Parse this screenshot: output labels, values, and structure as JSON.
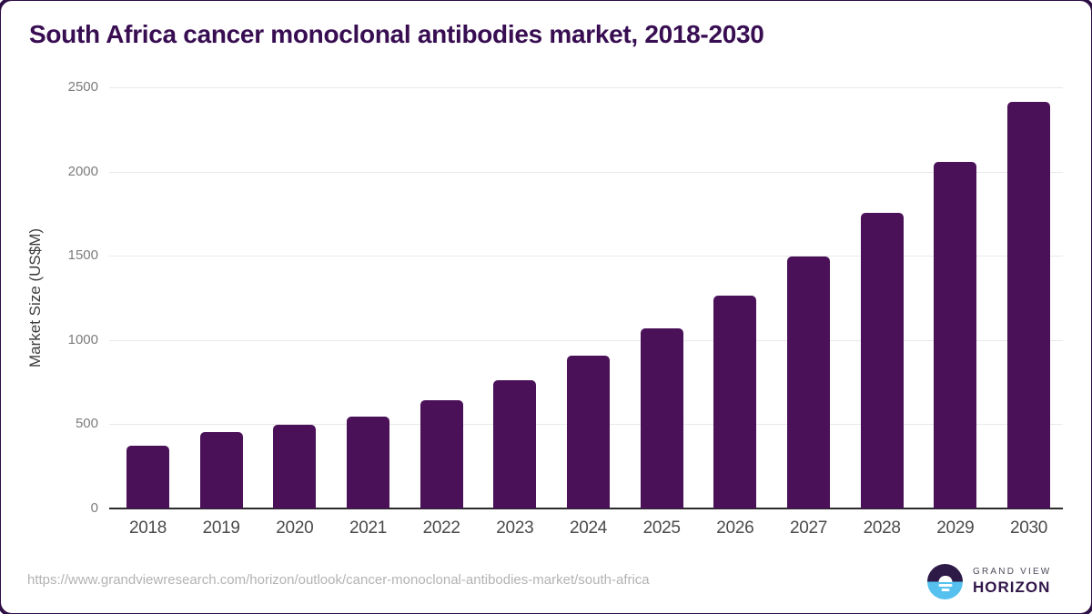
{
  "page": {
    "title": "South Africa cancer monoclonal antibodies market, 2018-2030",
    "source_url": "https://www.grandviewresearch.com/horizon/outlook/cancer-monoclonal-antibodies-market/south-africa"
  },
  "chart_data": {
    "type": "bar",
    "title": "South Africa cancer monoclonal antibodies market, 2018-2030",
    "categories": [
      "2018",
      "2019",
      "2020",
      "2021",
      "2022",
      "2023",
      "2024",
      "2025",
      "2026",
      "2027",
      "2028",
      "2029",
      "2030"
    ],
    "values": [
      375,
      452,
      495,
      543,
      645,
      763,
      905,
      1070,
      1266,
      1494,
      1757,
      2060,
      2413
    ],
    "xlabel": "",
    "ylabel": "Market Size (US$M)",
    "ylim": [
      0,
      2500
    ],
    "yticks": [
      0,
      500,
      1000,
      1500,
      2000,
      2500
    ],
    "grid": true,
    "legend": false,
    "bar_color": "#4a1058"
  },
  "branding": {
    "logo_line1": "GRAND VIEW",
    "logo_line2": "HORIZON",
    "logo_icon": "horizon-sunset-icon",
    "logo_dark_color": "#2e1a47",
    "logo_blue_color": "#56c1ef"
  },
  "colors": {
    "bar": "#4a1058",
    "title": "#380d52",
    "axis_line": "#2b2b2b",
    "gridline": "#e9e9e9",
    "y_tick_label": "#7c7c7c",
    "x_tick_label": "#4a4a4a",
    "url_text": "#b3b3b3"
  }
}
